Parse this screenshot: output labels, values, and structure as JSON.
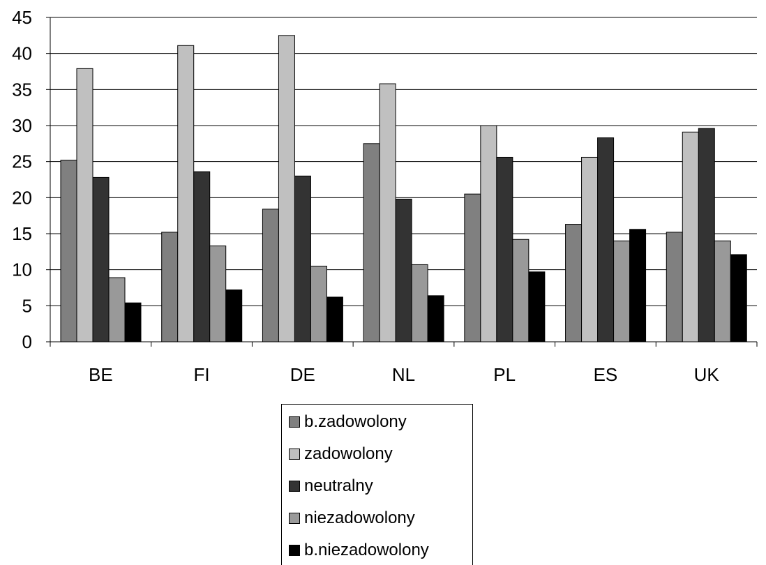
{
  "chart_data": {
    "type": "bar",
    "categories": [
      "BE",
      "FI",
      "DE",
      "NL",
      "PL",
      "ES",
      "UK"
    ],
    "series": [
      {
        "name": "b.zadowolony",
        "color": "#808080",
        "values": [
          25.2,
          15.2,
          18.4,
          27.5,
          20.5,
          16.3,
          15.2
        ]
      },
      {
        "name": "zadowolony",
        "color": "#c0c0c0",
        "values": [
          37.9,
          41.1,
          42.5,
          35.8,
          30.0,
          25.6,
          29.1
        ]
      },
      {
        "name": "neutralny",
        "color": "#333333",
        "values": [
          22.8,
          23.6,
          23.0,
          19.8,
          25.6,
          28.3,
          29.6
        ]
      },
      {
        "name": "niezadowolony",
        "color": "#999999",
        "values": [
          8.9,
          13.3,
          10.5,
          10.7,
          14.2,
          14.0,
          14.0
        ]
      },
      {
        "name": "b.niezadowolony",
        "color": "#000000",
        "values": [
          5.4,
          7.2,
          6.2,
          6.4,
          9.7,
          15.6,
          12.1
        ]
      }
    ],
    "y_ticks": [
      "0",
      "5",
      "10",
      "15",
      "20",
      "25",
      "30",
      "35",
      "40",
      "45"
    ],
    "ylim": [
      0,
      45
    ],
    "grid": true,
    "legend_position": "bottom"
  }
}
